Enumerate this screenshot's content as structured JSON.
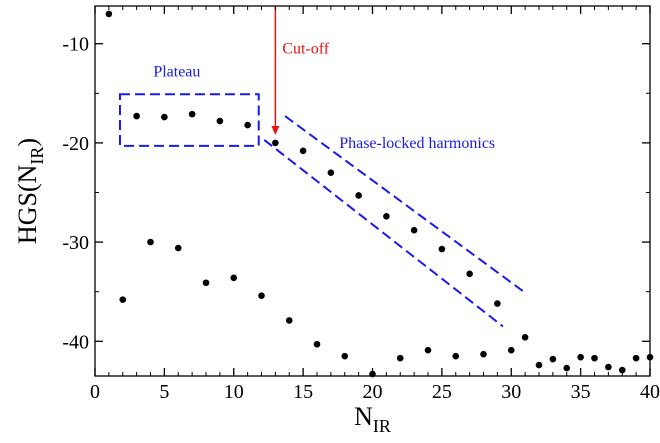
{
  "chart_data": {
    "type": "scatter",
    "xlabel_main": "N",
    "xlabel_sub": "IR",
    "ylabel_main": "HGS(N",
    "ylabel_sub": "IR",
    "ylabel_close": ")",
    "xlim": [
      0,
      40
    ],
    "ylim": [
      -43.5,
      -6.2
    ],
    "x_ticks": [
      0,
      5,
      10,
      15,
      20,
      25,
      30,
      35,
      40
    ],
    "x_tick_labels": [
      "0",
      "5",
      "10",
      "15",
      "20",
      "25",
      "30",
      "35",
      "40"
    ],
    "y_ticks": [
      -10,
      -20,
      -30,
      -40
    ],
    "y_tick_labels": [
      "-10",
      "-20",
      "-30",
      "-40"
    ],
    "grid": false,
    "series": [
      {
        "color": "#000000",
        "points": [
          [
            1,
            -7.0
          ],
          [
            2,
            -35.8
          ],
          [
            3,
            -17.3
          ],
          [
            4,
            -30.0
          ],
          [
            5,
            -17.4
          ],
          [
            6,
            -30.6
          ],
          [
            7,
            -17.1
          ],
          [
            8,
            -34.1
          ],
          [
            9,
            -17.8
          ],
          [
            10,
            -33.6
          ],
          [
            11,
            -18.2
          ],
          [
            12,
            -35.4
          ],
          [
            13,
            -20.0
          ],
          [
            14,
            -37.9
          ],
          [
            15,
            -20.8
          ],
          [
            16,
            -40.3
          ],
          [
            17,
            -23.0
          ],
          [
            18,
            -41.5
          ],
          [
            19,
            -25.3
          ],
          [
            20,
            -43.3
          ],
          [
            21,
            -27.4
          ],
          [
            22,
            -41.7
          ],
          [
            23,
            -28.8
          ],
          [
            24,
            -40.9
          ],
          [
            25,
            -30.7
          ],
          [
            26,
            -41.5
          ],
          [
            27,
            -33.2
          ],
          [
            28,
            -41.3
          ],
          [
            29,
            -36.2
          ],
          [
            30,
            -40.9
          ],
          [
            31,
            -39.6
          ],
          [
            32,
            -42.4
          ],
          [
            33,
            -41.8
          ],
          [
            34,
            -42.7
          ],
          [
            35,
            -41.6
          ],
          [
            36,
            -41.7
          ],
          [
            37,
            -42.6
          ],
          [
            38,
            -42.9
          ],
          [
            39,
            -41.7
          ],
          [
            40,
            -41.6
          ]
        ]
      }
    ],
    "annotations": {
      "plateau": {
        "text": "Plateau",
        "color": "#1a1aee",
        "box": {
          "x1": 1.8,
          "x2": 11.8,
          "y1": -20.3,
          "y2": -15.1
        }
      },
      "phase_locked": {
        "text": "Phase-locked harmonics",
        "color": "#1a1aee",
        "corners": [
          [
            12.2,
            -19.7
          ],
          [
            13.7,
            -17.3
          ],
          [
            30.9,
            -35.0
          ],
          [
            29.4,
            -38.5
          ]
        ]
      },
      "cutoff": {
        "text": "Cut-off",
        "color": "#ee1111",
        "arrow": {
          "x": 13,
          "y_from": -6.2,
          "y_to": -19.2
        }
      }
    }
  }
}
